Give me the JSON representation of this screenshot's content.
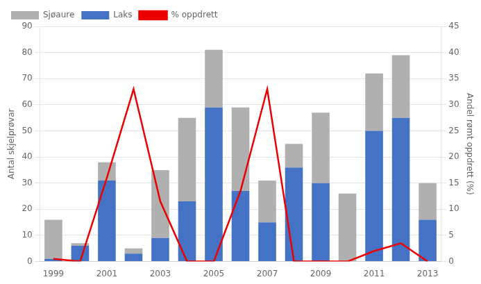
{
  "chart_data": {
    "type": "bar",
    "stacked": true,
    "categories": [
      "1999",
      null,
      "2001",
      null,
      "2003",
      null,
      "2005",
      null,
      "2007",
      null,
      "2009",
      null,
      "2011",
      null,
      "2013"
    ],
    "series": [
      {
        "name": "Sjøaure",
        "type": "bar",
        "color": "#b0b0b0",
        "values": [
          15,
          1,
          7,
          2,
          26,
          32,
          22,
          32,
          16,
          9,
          27,
          26,
          22,
          24,
          14
        ]
      },
      {
        "name": "Laks",
        "type": "bar",
        "color": "#4472c4",
        "values": [
          1,
          6,
          31,
          3,
          9,
          23,
          59,
          27,
          15,
          36,
          30,
          0,
          50,
          55,
          16
        ]
      },
      {
        "name": "% oppdrett",
        "type": "line",
        "color": "#ee0000",
        "axis": "y2",
        "values": [
          0.5,
          0,
          16,
          33,
          11.5,
          0,
          0,
          13.5,
          33,
          0,
          0,
          0,
          2,
          3.5,
          0
        ]
      }
    ],
    "ylabel": "Antal skjelprøvar",
    "y2label": "Andel rømt oppdrett (%)",
    "ylim": [
      0,
      90
    ],
    "yticks": [
      0,
      10,
      20,
      30,
      40,
      50,
      60,
      70,
      80,
      90
    ],
    "y2lim": [
      0,
      45
    ],
    "y2ticks": [
      0,
      5,
      10,
      15,
      20,
      25,
      30,
      35,
      40,
      45
    ],
    "grid": true,
    "legend": "upper left"
  }
}
